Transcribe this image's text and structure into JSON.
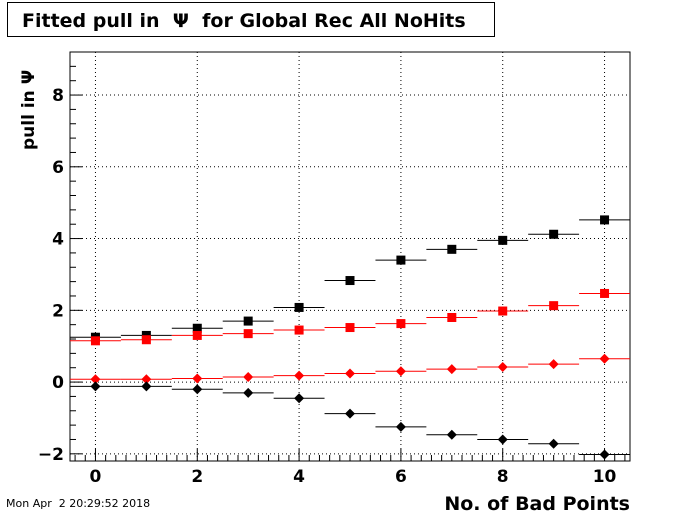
{
  "title": "Fitted pull in  Ψ  for Global Rec All NoHits",
  "footer_date": "Mon Apr  2 20:29:52 2018",
  "chart_data": {
    "type": "scatter",
    "title": "Fitted pull in  Ψ  for Global Rec All NoHits",
    "xlabel": "No. of Bad Points",
    "ylabel": "pull in  Ψ",
    "xlim": [
      -0.5,
      10.5
    ],
    "ylim": [
      -2.2,
      9.2
    ],
    "xticks": [
      0,
      2,
      4,
      6,
      8,
      10
    ],
    "yticks": [
      -2,
      0,
      2,
      4,
      6,
      8
    ],
    "grid": true,
    "x": [
      0,
      1,
      2,
      3,
      4,
      5,
      6,
      7,
      8,
      9,
      10
    ],
    "x_error": 0.5,
    "series": [
      {
        "color": "#000000",
        "marker": "square",
        "values": [
          1.25,
          1.3,
          1.5,
          1.7,
          2.08,
          2.83,
          3.4,
          3.7,
          3.95,
          4.12,
          4.52
        ]
      },
      {
        "color": "#ff0000",
        "marker": "square",
        "values": [
          1.15,
          1.18,
          1.3,
          1.35,
          1.45,
          1.52,
          1.63,
          1.8,
          1.98,
          2.13,
          2.47
        ]
      },
      {
        "color": "#ff0000",
        "marker": "diamond",
        "values": [
          0.08,
          0.08,
          0.1,
          0.14,
          0.18,
          0.24,
          0.3,
          0.36,
          0.42,
          0.5,
          0.65
        ]
      },
      {
        "color": "#000000",
        "marker": "diamond",
        "values": [
          -0.12,
          -0.12,
          -0.2,
          -0.3,
          -0.45,
          -0.88,
          -1.25,
          -1.47,
          -1.6,
          -1.72,
          -2.02
        ]
      }
    ]
  }
}
